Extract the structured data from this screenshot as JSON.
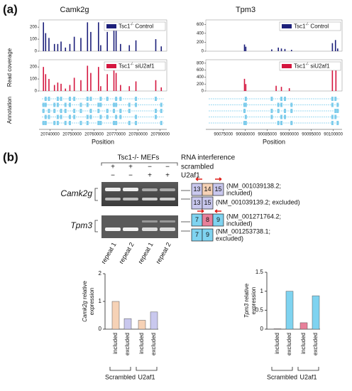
{
  "panel_a": {
    "label": "(a)",
    "y_label_coverage": "Read coverage",
    "y_label_annotation": "Annotation",
    "genes": [
      {
        "title": "Camk2g",
        "x_label": "Position",
        "xlim": [
          20735000,
          20793000
        ],
        "xticks": [
          20740000,
          20750000,
          20760000,
          20770000,
          20780000,
          20790000
        ],
        "tracks": [
          {
            "legend_base": "Tsc1",
            "legend_sup": "-/-",
            "legend_rest": " Control",
            "color": "#1c1f7a",
            "ylim": [
              0,
              260
            ],
            "yticks": [
              0,
              100,
              200
            ],
            "x": [
              20737000,
              20738000,
              20739500,
              20742000,
              20743500,
              20745000,
              20747000,
              20749000,
              20751000,
              20754000,
              20757000,
              20758500,
              20762000,
              20763000,
              20766000,
              20769000,
              20770000,
              20772000,
              20776000,
              20779000,
              20788000,
              20790500
            ],
            "values": [
              240,
              150,
              110,
              60,
              60,
              80,
              30,
              60,
              120,
              110,
              240,
              160,
              240,
              50,
              160,
              230,
              170,
              60,
              50,
              90,
              100,
              40
            ]
          },
          {
            "legend_base": "Tsc1",
            "legend_sup": "-/-",
            "legend_rest": " siU2af1",
            "color": "#d4163f",
            "ylim": [
              0,
              260
            ],
            "yticks": [
              0,
              100,
              200
            ],
            "x": [
              20737000,
              20738000,
              20739500,
              20742000,
              20743500,
              20745000,
              20747000,
              20749000,
              20751000,
              20754000,
              20757000,
              20758500,
              20762000,
              20763000,
              20766000,
              20769000,
              20770000,
              20772000,
              20776000,
              20779000,
              20788000,
              20790500
            ],
            "values": [
              200,
              140,
              100,
              50,
              70,
              60,
              20,
              50,
              110,
              90,
              210,
              150,
              200,
              40,
              140,
              200,
              150,
              50,
              40,
              80,
              90,
              30
            ]
          }
        ]
      },
      {
        "title": "Tpm3",
        "x_label": "Position",
        "xlim": [
          90071000,
          90102000
        ],
        "xticks": [
          90075000,
          90080000,
          90085000,
          90090000,
          90095000,
          90100000
        ],
        "tracks": [
          {
            "legend_base": "Tsc1",
            "legend_sup": "-/-",
            "legend_rest": " Control",
            "color": "#1c1f7a",
            "ylim": [
              0,
              700
            ],
            "yticks": [
              0,
              200,
              400,
              600
            ],
            "x": [
              90079800,
              90080100,
              90086000,
              90087500,
              90088200,
              90089000,
              90090500,
              90099800,
              90100500,
              90101000
            ],
            "values": [
              150,
              100,
              40,
              80,
              60,
              50,
              30,
              180,
              250,
              60
            ]
          },
          {
            "legend_base": "Tsc1",
            "legend_sup": "-/-",
            "legend_rest": " siU2af1",
            "color": "#d4163f",
            "ylim": [
              0,
              900
            ],
            "yticks": [
              0,
              200,
              400,
              600,
              800
            ],
            "x": [
              90079800,
              90080100,
              90087000,
              90088200,
              90090000,
              90099800,
              90100600
            ],
            "values": [
              350,
              200,
              150,
              120,
              80,
              700,
              800
            ]
          }
        ]
      }
    ]
  },
  "panel_b": {
    "label": "(b)",
    "cells": "Tsc1-/- MEFs",
    "rnai": "RNA interference",
    "rows": [
      {
        "name": "scrambled",
        "signs": [
          "+",
          "+",
          "−",
          "−"
        ]
      },
      {
        "name": "U2af1",
        "signs": [
          "−",
          "−",
          "+",
          "+"
        ]
      }
    ],
    "lanes": [
      "repeat 1",
      "repeat 2",
      "repeat 1",
      "repeat 2"
    ],
    "gels": [
      {
        "gene": "Camk2g",
        "isoforms": [
          {
            "exons": [
              "13",
              "14",
              "15"
            ],
            "lines": [
              "(NM_001039138.2;",
              "included)"
            ]
          },
          {
            "exons": [
              "13",
              "15"
            ],
            "lines": [
              "(NM_001039139.2; excluded)"
            ]
          }
        ]
      },
      {
        "gene": "Tpm3",
        "isoforms": [
          {
            "exons": [
              "7",
              "8",
              "9"
            ],
            "lines": [
              "(NM_001271764.2;",
              "included)"
            ]
          },
          {
            "exons": [
              "7",
              "9"
            ],
            "lines": [
              "(NM_001253738.1;",
              "excluded)"
            ]
          }
        ]
      }
    ]
  },
  "chart_data": [
    {
      "type": "bar",
      "y_label_gene": "Camk2g",
      "y_label_rest": " relative",
      "y_label_line2": "expression",
      "categories": [
        "included",
        "excluded",
        "included",
        "excluded"
      ],
      "groups": [
        "Scrambled",
        "U2af1"
      ],
      "values": [
        1.0,
        0.38,
        0.32,
        0.62
      ],
      "colors": [
        "#f6d2b6",
        "#c9c8ee",
        "#f6d2b6",
        "#c9c8ee"
      ],
      "ylim": [
        0,
        2
      ],
      "yticks": [
        0,
        1,
        2
      ]
    },
    {
      "type": "bar",
      "y_label_gene": "Tpm3",
      "y_label_rest": " relative",
      "y_label_line2": "expression",
      "categories": [
        "included",
        "excluded",
        "included",
        "excluded"
      ],
      "groups": [
        "Scrambled",
        "U2af1"
      ],
      "values": [
        0.01,
        1.0,
        0.17,
        0.88
      ],
      "colors": [
        "#e8809a",
        "#7fd3f0",
        "#e8809a",
        "#7fd3f0"
      ],
      "ylim": [
        0,
        1.5
      ],
      "yticks": [
        0,
        0.5,
        1,
        1.5
      ]
    }
  ]
}
